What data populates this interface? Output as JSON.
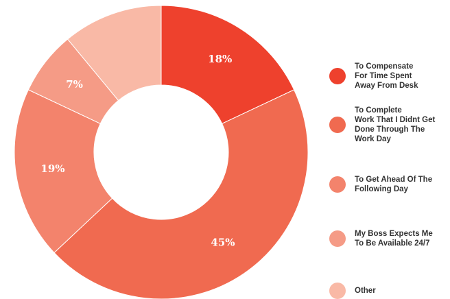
{
  "colors": {
    "slice_1": "#ee412d",
    "slice_2": "#f06a50",
    "slice_3": "#f3836c",
    "slice_4": "#f59b86",
    "slice_5": "#f9b9a6"
  },
  "chart_data": {
    "type": "pie",
    "donut": true,
    "legend_position": "right",
    "slices": [
      {
        "label": "To Compensate\nFor Time Spent\nAway From Desk",
        "value": 18,
        "display": "18%"
      },
      {
        "label": "To Complete\nWork That I Didnt Get\nDone Through The\nWork Day",
        "value": 45,
        "display": "45%"
      },
      {
        "label": "To Get Ahead Of The\nFollowing Day",
        "value": 19,
        "display": "19%"
      },
      {
        "label": "My Boss Expects Me\nTo Be Available 24/7",
        "value": 7,
        "display": "7%"
      },
      {
        "label": "Other",
        "value": 11,
        "display": ""
      }
    ]
  }
}
